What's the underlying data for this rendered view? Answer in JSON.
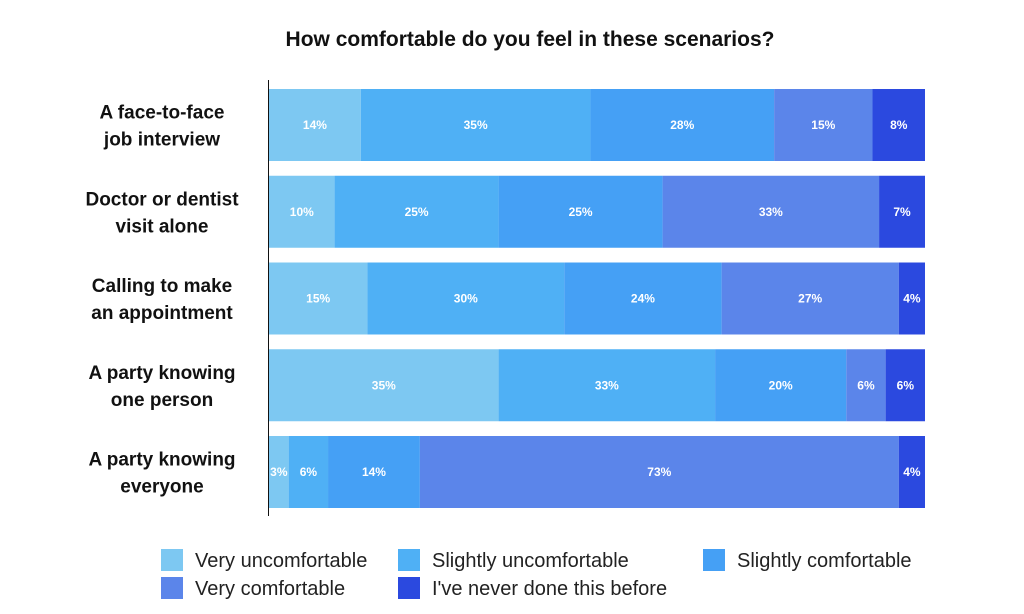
{
  "chart_data": {
    "type": "bar",
    "orientation": "horizontal",
    "stacked": true,
    "title": "How comfortable do you feel in these scenarios?",
    "xlabel": "",
    "ylabel": "",
    "xlim": [
      0,
      100
    ],
    "grid": false,
    "legend_position": "bottom",
    "categories": [
      [
        "A face-to-face",
        "job interview"
      ],
      [
        "Doctor or dentist",
        "visit alone"
      ],
      [
        "Calling to make",
        "an appointment"
      ],
      [
        "A party knowing",
        "one person"
      ],
      [
        "A party knowing",
        "everyone"
      ]
    ],
    "series": [
      {
        "name": "Very uncomfortable",
        "color": "#7dc8f2",
        "values": [
          14,
          10,
          15,
          35,
          3
        ],
        "labels": [
          "14%",
          "10%",
          "15%",
          "35%",
          "3%"
        ]
      },
      {
        "name": "Slightly uncomfortable",
        "color": "#4fb0f5",
        "values": [
          35,
          25,
          30,
          33,
          6
        ],
        "labels": [
          "35%",
          "25%",
          "30%",
          "33%",
          "6%"
        ]
      },
      {
        "name": "Slightly comfortable",
        "color": "#45a0f5",
        "values": [
          28,
          25,
          24,
          20,
          14
        ],
        "labels": [
          "28%",
          "25%",
          "24%",
          "20%",
          "14%"
        ]
      },
      {
        "name": "Very comfortable",
        "color": "#5b85ea",
        "values": [
          15,
          33,
          27,
          6,
          73
        ],
        "labels": [
          "15%",
          "33%",
          "27%",
          "6%",
          "73%"
        ]
      },
      {
        "name": "I've never done this before",
        "color": "#2b49df",
        "values": [
          8,
          7,
          4,
          6,
          4
        ],
        "labels": [
          "8%",
          "7%",
          "4%",
          "6%",
          "4%"
        ]
      }
    ]
  }
}
